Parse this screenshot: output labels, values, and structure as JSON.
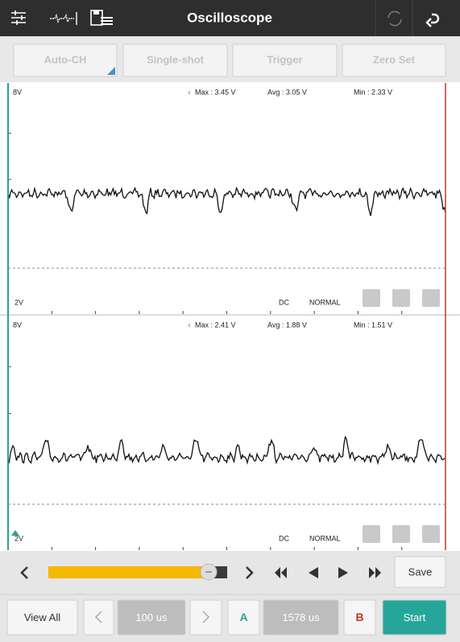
{
  "header": {
    "title": "Oscilloscope"
  },
  "toolbar": {
    "buttons": [
      "Auto-CH",
      "Single-shot",
      "Trigger",
      "Zero Set"
    ]
  },
  "channels": [
    {
      "scale_max": "8V",
      "max": "Max : 3.45 V",
      "avg": "Avg : 3.05 V",
      "min": "Min : 2.33 V",
      "scale_min": "2V",
      "coupling": "DC",
      "mode": "NORMAL"
    },
    {
      "scale_max": "8V",
      "max": "Max : 2.41 V",
      "avg": "Avg : 1.88 V",
      "min": "Min : 1.51 V",
      "scale_min": "2V",
      "coupling": "DC",
      "mode": "NORMAL"
    }
  ],
  "controls": {
    "save": "Save",
    "view_all": "View All",
    "time_div": "100 us",
    "cursor_a": "A",
    "cursor_time": "1578 us",
    "cursor_b": "B",
    "start": "Start"
  }
}
